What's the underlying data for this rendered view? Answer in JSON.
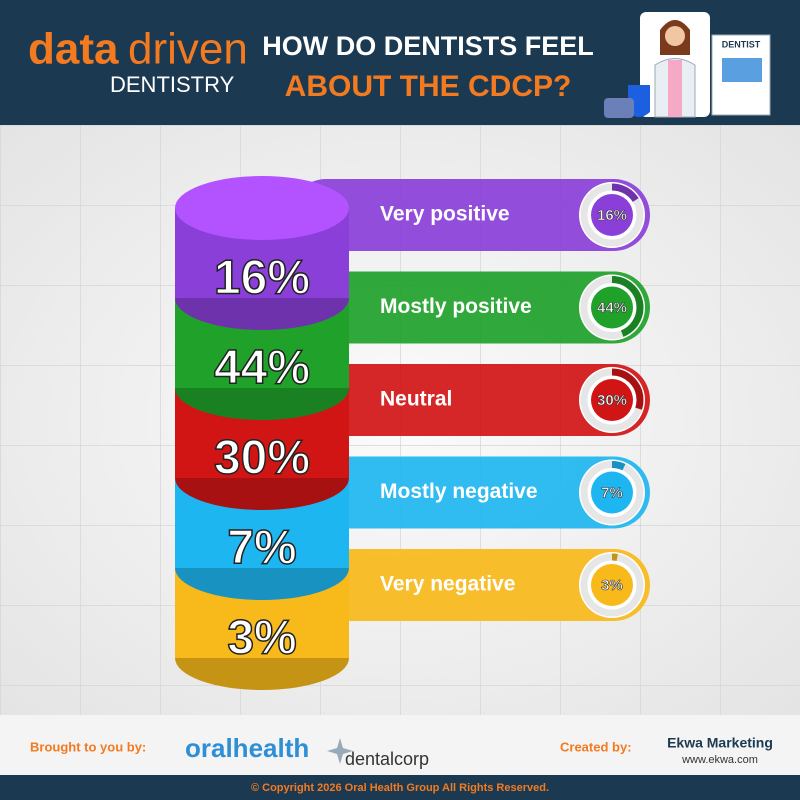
{
  "header": {
    "logo_data": "data",
    "logo_driven": "driven",
    "logo_sub": "DENTISTRY",
    "title_line1": "HOW DO DENTISTS FEEL",
    "title_line2": "ABOUT THE CDCP?",
    "badge": "DENTIST"
  },
  "chart_data": {
    "type": "cylinder",
    "categories": [
      "Very positive",
      "Mostly positive",
      "Neutral",
      "Mostly negative",
      "Very negative"
    ],
    "values": [
      16,
      44,
      30,
      7,
      3
    ],
    "value_labels": [
      "16%",
      "44%",
      "30%",
      "7%",
      "3%"
    ],
    "colors": [
      "#8a3fd8",
      "#1fa12a",
      "#d11515",
      "#1eb6f0",
      "#f8b91a"
    ]
  },
  "footer": {
    "brought": "Brought to you by:",
    "sponsor1": "oralhealth",
    "sponsor2": "dentalcorp",
    "created": "Created by:",
    "agency": "Ekwa Marketing",
    "url": "www.ekwa.com",
    "copyright": "© Copyright 2026 Oral Health Group All Rights Reserved."
  }
}
